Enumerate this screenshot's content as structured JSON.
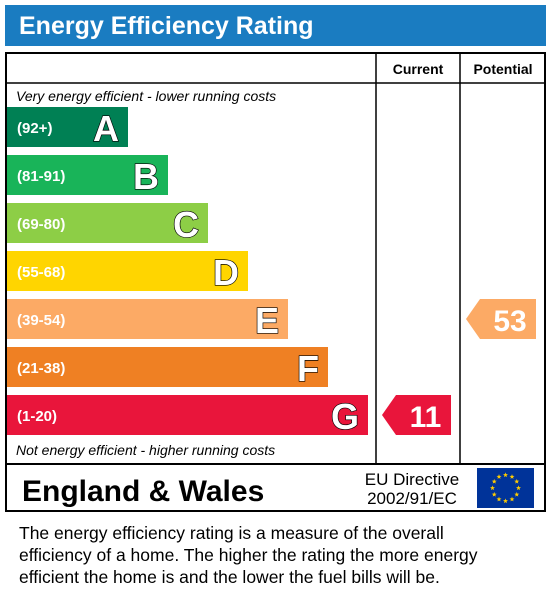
{
  "header": {
    "title": "Energy Efficiency Rating"
  },
  "columns": {
    "current": "Current",
    "potential": "Potential"
  },
  "scale_top_caption": "Very energy efficient - lower running costs",
  "scale_bottom_caption": "Not energy efficient - higher running costs",
  "region": "England & Wales",
  "directive": {
    "line1": "EU Directive",
    "line2": "2002/91/EC"
  },
  "footnote": {
    "line1": "The energy efficiency rating is a measure of the overall",
    "line2": "efficiency of a home.  The higher the rating the more energy",
    "line3": "efficient the home is and the lower the fuel bills will be."
  },
  "chart_data": {
    "type": "bar",
    "title": "Energy Efficiency Rating",
    "bands": [
      {
        "letter": "A",
        "range": "(92+)",
        "color": "#008054"
      },
      {
        "letter": "B",
        "range": "(81-91)",
        "color": "#19b459"
      },
      {
        "letter": "C",
        "range": "(69-80)",
        "color": "#8dce46"
      },
      {
        "letter": "D",
        "range": "(55-68)",
        "color": "#ffd500"
      },
      {
        "letter": "E",
        "range": "(39-54)",
        "color": "#fcaa65"
      },
      {
        "letter": "F",
        "range": "(21-38)",
        "color": "#ef8023"
      },
      {
        "letter": "G",
        "range": "(1-20)",
        "color": "#e9153b"
      }
    ],
    "current": {
      "value": 11,
      "band": "G",
      "color": "#e9153b"
    },
    "potential": {
      "value": 53,
      "band": "E",
      "color": "#fcaa65"
    }
  },
  "colors": {
    "header_bg": "#1a7cc1",
    "eu_flag_bg": "#003399",
    "eu_flag_stars": "#ffcc00"
  }
}
